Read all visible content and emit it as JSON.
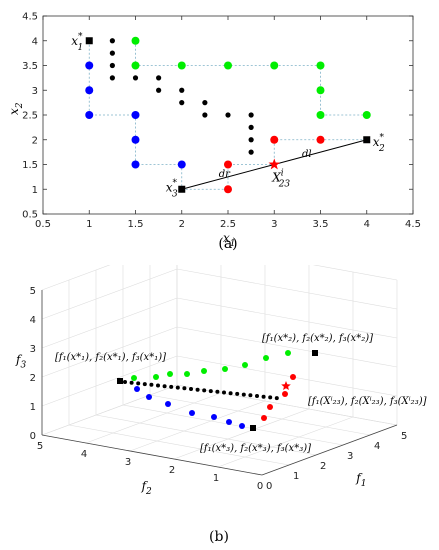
{
  "chart_data": [
    {
      "type": "scatter",
      "panel_label": "(a)",
      "xlabel": "x",
      "xlabel_sub": "1",
      "ylabel": "x",
      "ylabel_sub": "2",
      "xlim": [
        0.5,
        4.5
      ],
      "ylim": [
        0.5,
        4.5
      ],
      "xticks": [
        0.5,
        1,
        1.5,
        2,
        2.5,
        3,
        3.5,
        4,
        4.5
      ],
      "yticks": [
        0.5,
        1,
        1.5,
        2,
        2.5,
        3,
        3.5,
        4,
        4.5
      ],
      "tick_labels": [
        "0.5",
        "1",
        "1.5",
        "2",
        "2.5",
        "3",
        "3.5",
        "4",
        "4.5"
      ],
      "grid": false,
      "colors": {
        "green": "#00ee00",
        "blue": "#0000ff",
        "red": "#ff0000",
        "black": "#000000",
        "dashed": "#7fb2c8"
      },
      "series": [
        {
          "color": "green",
          "points": [
            [
              1.5,
              4
            ],
            [
              1.5,
              3.5
            ],
            [
              2,
              3.5
            ],
            [
              2.5,
              3.5
            ],
            [
              3,
              3.5
            ],
            [
              3.5,
              3.5
            ],
            [
              3.5,
              3
            ],
            [
              3.5,
              2.5
            ],
            [
              4,
              2.5
            ]
          ],
          "path": [
            [
              1.5,
              4
            ],
            [
              1.5,
              3.5
            ],
            [
              2,
              3.5
            ],
            [
              2.5,
              3.5
            ],
            [
              3,
              3.5
            ],
            [
              3.5,
              3.5
            ],
            [
              3.5,
              3
            ],
            [
              3.5,
              2.5
            ],
            [
              4,
              2.5
            ]
          ]
        },
        {
          "color": "blue",
          "points": [
            [
              1,
              3.5
            ],
            [
              1,
              3
            ],
            [
              1,
              2.5
            ],
            [
              1.5,
              2.5
            ],
            [
              1.5,
              2
            ],
            [
              1.5,
              1.5
            ],
            [
              2,
              1.5
            ]
          ],
          "path": [
            [
              1,
              4
            ],
            [
              1,
              3.5
            ],
            [
              1,
              3
            ],
            [
              1,
              2.5
            ],
            [
              1.5,
              2.5
            ],
            [
              1.5,
              2
            ],
            [
              1.5,
              1.5
            ],
            [
              2,
              1.5
            ],
            [
              2,
              1
            ]
          ]
        },
        {
          "color": "red",
          "points": [
            [
              2.5,
              1
            ],
            [
              2.5,
              1.5
            ],
            [
              3,
              2
            ],
            [
              3.5,
              2
            ]
          ],
          "path": [
            [
              2,
              1
            ],
            [
              2.5,
              1
            ],
            [
              2.5,
              1.5
            ],
            [
              3,
              1.5
            ],
            [
              3,
              2
            ],
            [
              3.5,
              2
            ],
            [
              4,
              2
            ]
          ]
        },
        {
          "color": "black",
          "points": [
            [
              1.25,
              4
            ],
            [
              1.25,
              3.75
            ],
            [
              1.25,
              3.5
            ],
            [
              1.25,
              3.25
            ],
            [
              1.5,
              3.25
            ],
            [
              1.75,
              3.25
            ],
            [
              1.75,
              3
            ],
            [
              2,
              3
            ],
            [
              2,
              2.75
            ],
            [
              2.25,
              2.75
            ],
            [
              2.25,
              2.5
            ],
            [
              2.5,
              2.5
            ],
            [
              2.75,
              2.5
            ],
            [
              2.75,
              2.25
            ],
            [
              2.75,
              2
            ],
            [
              2.75,
              1.75
            ]
          ]
        }
      ],
      "endpoints": [
        {
          "x": 1,
          "y": 4,
          "label": "x",
          "sup": "*",
          "sub": "1"
        },
        {
          "x": 4,
          "y": 2,
          "label": "x",
          "sup": "*",
          "sub": "2"
        },
        {
          "x": 2,
          "y": 1,
          "label": "x",
          "sup": "*",
          "sub": "3"
        }
      ],
      "star": {
        "x": 3,
        "y": 1.5,
        "label": "X",
        "sup": "i",
        "sub": "23"
      },
      "segment_labels": {
        "dr": "dr",
        "dl": "dl"
      }
    },
    {
      "type": "scatter3d",
      "panel_label": "(b)",
      "xlabel": "f",
      "xlabel_sub": "1",
      "ylabel": "f",
      "ylabel_sub": "2",
      "zlabel": "f",
      "zlabel_sub": "3",
      "ticks": [
        "0",
        "1",
        "2",
        "3",
        "4",
        "5"
      ],
      "annotations": [
        "[f₁(x*₂), f₂(x*₂), f₃(x*₂)]",
        "[f₁(x*₁), f₂(x*₁), f₃(x*₁)]",
        "[f₁(Xⁱ₂₃), f₂(Xⁱ₂₃), f₃(Xⁱ₂₃)]",
        "[f₁(x*₃), f₂(x*₃), f₃(x*₃)]"
      ]
    }
  ]
}
